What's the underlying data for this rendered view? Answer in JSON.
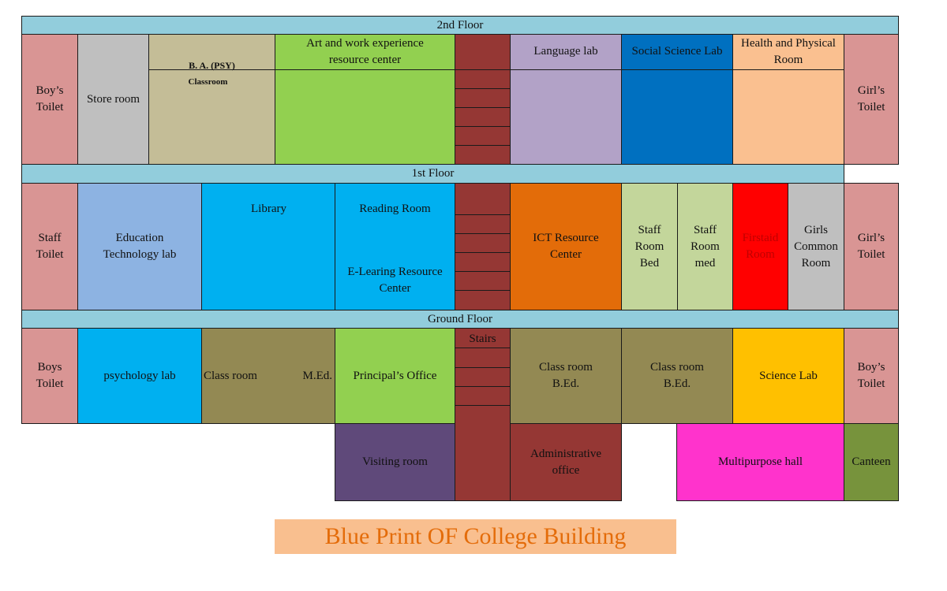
{
  "floors": {
    "second": "2nd Floor",
    "first": "1st  Floor",
    "ground": "Ground Floor"
  },
  "second_floor": {
    "boys_toilet": "Boy’s\nToilet",
    "store_room": "Store room",
    "ba_psy_title": "B. A. (PSY)",
    "ba_psy_sub": "Classroom",
    "art_center": "Art and work experience\nresource center",
    "language_lab": "Language lab",
    "social_science_lab": "Social Science Lab",
    "health_room": "Health and Physical\nRoom",
    "girls_toilet": "Girl’s\nToilet"
  },
  "first_floor": {
    "staff_toilet": "Staff\nToilet",
    "edu_tech_lab": "Education\nTechnology lab",
    "library": "Library",
    "reading_room": "Reading Room",
    "elearning": "E-Learing Resource\nCenter",
    "ict_center": "ICT Resource\nCenter",
    "staff_room_bed": "Staff\nRoom\nBed",
    "staff_room_med": "Staff\nRoom\nmed",
    "firstaid_room": "Firstaid\nRoom",
    "girls_common_room": "Girls\nCommon\nRoom",
    "girls_toilet": "Girl’s\nToilet"
  },
  "ground_floor": {
    "boys_toilet": "Boys\nToilet",
    "psychology_lab": "psychology lab",
    "class_room": "Class room",
    "med": "M.Ed.",
    "principals_office": "Principal’s Office",
    "stairs": "Stairs",
    "class_room_bed_1": "Class room\nB.Ed.",
    "class_room_bed_2": "Class room\nB.Ed.",
    "science_lab": "Science Lab",
    "boys_toilet_right": "Boy’s\nToilet"
  },
  "annex": {
    "visiting_room": "Visiting room",
    "administrative_office": "Administrative\noffice",
    "multipurpose_hall": "Multipurpose hall",
    "canteen": "Canteen"
  },
  "title": "Blue Print OF College Building",
  "colors": {
    "toilet": "#d99594",
    "store": "#bfbfbf",
    "tan": "#c4bd97",
    "green": "#92d050",
    "lavender": "#b2a2c7",
    "blue_dark": "#0070c0",
    "peach": "#fac090",
    "light_blue": "#8db3e2",
    "cyan": "#00b0f0",
    "orange": "#e36c09",
    "pale_green": "#c3d69b",
    "red": "#ff0000",
    "gray": "#bfbfbf",
    "olive": "#938953",
    "gold": "#ffc000",
    "purple": "#5f497a",
    "maroon": "#953734",
    "magenta": "#ff33cc",
    "canteen_green": "#77933c",
    "band": "#92cddc",
    "title_bg": "#f9bf8f",
    "title_text": "#e46c0a"
  }
}
